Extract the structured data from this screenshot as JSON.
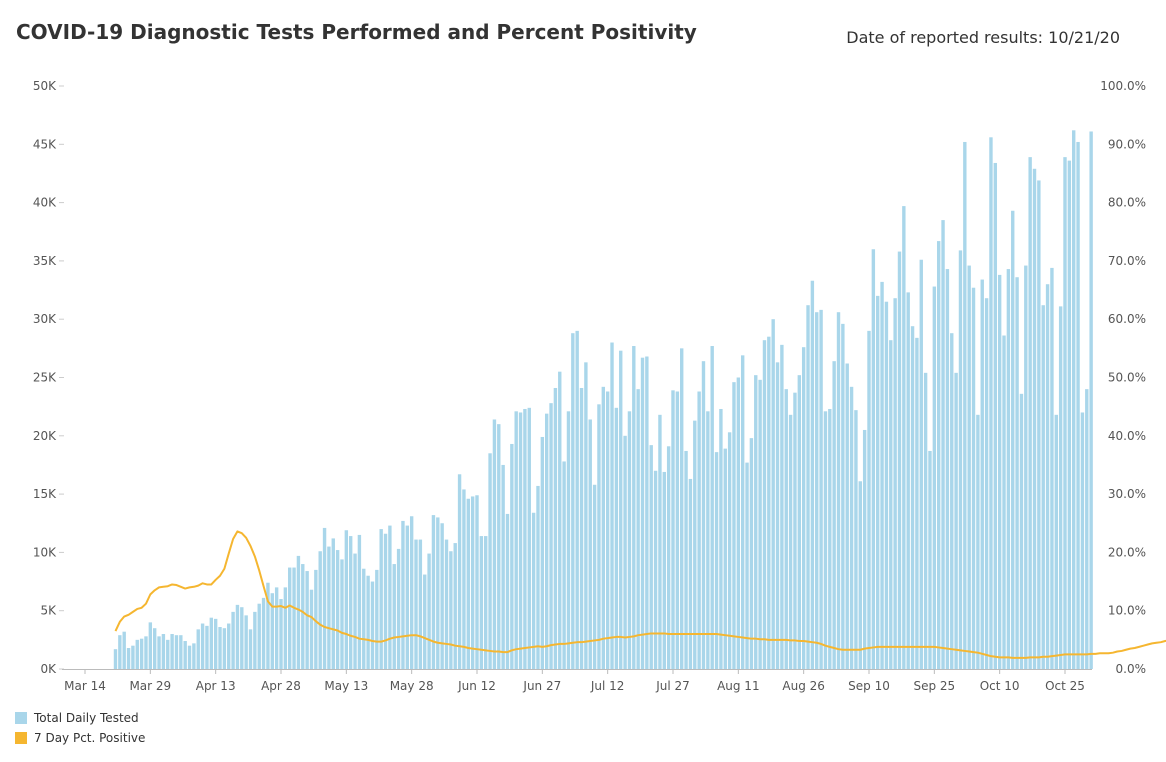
{
  "header": {
    "title": "COVID-19 Diagnostic Tests Performed and Percent Positivity",
    "date_note": "Date of reported results: 10/21/20"
  },
  "colors": {
    "tests": "#a9d6ea",
    "positivity": "#f5b630",
    "axis_text": "#555555"
  },
  "legend": [
    {
      "label": "Total Daily Tested",
      "color": "#a9d6ea"
    },
    {
      "label": "7 Day Pct. Positive",
      "color": "#f5b630"
    }
  ],
  "chart_data": {
    "type": "bar",
    "title": "COVID-19 Diagnostic Tests Performed and Percent Positivity",
    "x_ticks": [
      "Mar 14",
      "Mar 29",
      "Apr 13",
      "Apr 28",
      "May 13",
      "May 28",
      "Jun 12",
      "Jun 27",
      "Jul 12",
      "Jul 27",
      "Aug 11",
      "Aug 26",
      "Sep 10",
      "Sep 25",
      "Oct 10",
      "Oct 25"
    ],
    "x_start": "2020-03-14",
    "x_end": "2020-10-25",
    "y_left": {
      "ticks": [
        "0K",
        "5K",
        "10K",
        "15K",
        "20K",
        "25K",
        "30K",
        "35K",
        "40K",
        "45K",
        "50K"
      ],
      "ylim": [
        0,
        50000
      ]
    },
    "y_right": {
      "ticks": [
        "0.0%",
        "10.0%",
        "20.0%",
        "30.0%",
        "40.0%",
        "50.0%",
        "60.0%",
        "70.0%",
        "80.0%",
        "90.0%",
        "100.0%"
      ],
      "ylim": [
        0,
        100
      ]
    },
    "end_label": "5.1%",
    "series": [
      {
        "name": "Total Daily Tested",
        "axis": "left",
        "start": "2020-03-21",
        "values": [
          1700,
          2900,
          3200,
          1800,
          2000,
          2500,
          2600,
          2800,
          4000,
          3500,
          2800,
          3000,
          2500,
          3000,
          2900,
          2900,
          2400,
          2000,
          2200,
          3400,
          3900,
          3700,
          4400,
          4300,
          3600,
          3500,
          3900,
          4900,
          5500,
          5300,
          4600,
          3400,
          4900,
          5600,
          6100,
          7400,
          6500,
          7000,
          6000,
          7000,
          8700,
          8700,
          9700,
          9000,
          8400,
          6800,
          8500,
          10100,
          12100,
          10500,
          11200,
          10200,
          9400,
          11900,
          11400,
          9900,
          11500,
          8600,
          8000,
          7500,
          8500,
          12000,
          11600,
          12300,
          9000,
          10300,
          12700,
          12300,
          13100,
          11100,
          11100,
          8100,
          9900,
          13200,
          13000,
          12500,
          11100,
          10100,
          10800,
          16700,
          15400,
          14600,
          14800,
          14900,
          11400,
          11400,
          18500,
          21400,
          21000,
          17500,
          13300,
          19300,
          22100,
          22000,
          22300,
          22400,
          13400,
          15700,
          19900,
          21900,
          22800,
          24100,
          25500,
          17800,
          22100,
          28800,
          29000,
          24100,
          26300,
          21400,
          15800,
          22700,
          24200,
          23800,
          28000,
          22400,
          27300,
          20000,
          22100,
          27700,
          24000,
          26700,
          26800,
          19200,
          17000,
          21800,
          16900,
          19100,
          23900,
          23800,
          27500,
          18700,
          16300,
          21300,
          23800,
          26400,
          22100,
          27700,
          18600,
          22300,
          18900,
          20300,
          24600,
          25000,
          26900,
          17700,
          19800,
          25200,
          24800,
          28200,
          28500,
          30000,
          26300,
          27800,
          24000,
          21800,
          23700,
          25200,
          27600,
          31200,
          33300,
          30600,
          30800,
          22100,
          22300,
          26400,
          30600,
          29600,
          26200,
          24200,
          22200,
          16100,
          20500,
          29000,
          36000,
          32000,
          33200,
          31500,
          28200,
          31800,
          35800,
          39700,
          32300,
          29400,
          28400,
          35100,
          25400,
          18700,
          32800,
          36700,
          38500,
          34300,
          28800,
          25400,
          35900,
          45200,
          34600,
          32700,
          21800,
          33400,
          31800,
          45600,
          43400,
          33800,
          28600,
          34300,
          39300,
          33600,
          23600,
          34600,
          43900,
          42900,
          41900,
          31200,
          33000,
          34400,
          21800,
          31100,
          43900,
          43600,
          46200,
          45200,
          22000,
          24000,
          46100
        ],
        "source_note": "values read approximately from chart"
      },
      {
        "name": "7 Day Pct. Positive",
        "axis": "right",
        "start": "2020-03-21",
        "values": [
          6.5,
          8.1,
          9.0,
          9.3,
          9.8,
          10.3,
          10.5,
          11.2,
          12.8,
          13.5,
          14.0,
          14.1,
          14.2,
          14.5,
          14.4,
          14.1,
          13.8,
          14.0,
          14.1,
          14.3,
          14.7,
          14.5,
          14.5,
          15.3,
          16.0,
          17.2,
          19.8,
          22.3,
          23.6,
          23.3,
          22.5,
          21.1,
          19.3,
          16.9,
          14.2,
          11.6,
          10.7,
          10.7,
          10.8,
          10.5,
          10.9,
          10.5,
          10.2,
          9.8,
          9.2,
          8.9,
          8.2,
          7.6,
          7.2,
          7.0,
          6.8,
          6.6,
          6.2,
          6.0,
          5.7,
          5.5,
          5.2,
          5.1,
          5.0,
          4.8,
          4.7,
          4.7,
          4.9,
          5.2,
          5.4,
          5.5,
          5.6,
          5.7,
          5.8,
          5.8,
          5.6,
          5.3,
          5.0,
          4.7,
          4.5,
          4.4,
          4.3,
          4.2,
          4.0,
          3.9,
          3.8,
          3.6,
          3.5,
          3.4,
          3.3,
          3.2,
          3.1,
          3.0,
          3.0,
          2.9,
          2.9,
          3.2,
          3.4,
          3.5,
          3.6,
          3.7,
          3.8,
          3.9,
          3.8,
          3.9,
          4.1,
          4.2,
          4.3,
          4.3,
          4.4,
          4.5,
          4.6,
          4.6,
          4.7,
          4.8,
          4.9,
          5.0,
          5.2,
          5.3,
          5.4,
          5.5,
          5.5,
          5.4,
          5.5,
          5.6,
          5.8,
          5.9,
          6.0,
          6.1,
          6.1,
          6.1,
          6.1,
          6.0,
          6.0,
          6.0,
          6.0,
          6.0,
          6.0,
          6.0,
          6.0,
          6.0,
          6.0,
          6.0,
          6.0,
          5.9,
          5.8,
          5.7,
          5.6,
          5.5,
          5.4,
          5.3,
          5.2,
          5.2,
          5.1,
          5.1,
          5.0,
          5.0,
          5.0,
          5.0,
          5.0,
          4.9,
          4.9,
          4.8,
          4.8,
          4.7,
          4.6,
          4.5,
          4.3,
          4.0,
          3.8,
          3.6,
          3.4,
          3.3,
          3.3,
          3.3,
          3.3,
          3.3,
          3.5,
          3.6,
          3.7,
          3.8,
          3.8,
          3.8,
          3.8,
          3.8,
          3.8,
          3.8,
          3.8,
          3.8,
          3.8,
          3.8,
          3.8,
          3.8,
          3.8,
          3.7,
          3.6,
          3.5,
          3.4,
          3.3,
          3.2,
          3.1,
          3.0,
          2.9,
          2.8,
          2.6,
          2.4,
          2.2,
          2.1,
          2.0,
          2.0,
          2.0,
          1.9,
          1.9,
          1.9,
          1.9,
          2.0,
          2.0,
          2.0,
          2.1,
          2.1,
          2.2,
          2.3,
          2.4,
          2.5,
          2.5,
          2.5,
          2.5,
          2.5,
          2.5,
          2.6,
          2.6,
          2.7,
          2.7,
          2.7,
          2.8,
          3.0,
          3.1,
          3.3,
          3.5,
          3.6,
          3.8,
          4.0,
          4.2,
          4.4,
          4.5,
          4.6,
          4.8,
          4.9,
          4.9,
          4.9,
          4.9,
          5.0,
          5.1
        ],
        "source_note": "values read approximately from chart"
      }
    ]
  }
}
